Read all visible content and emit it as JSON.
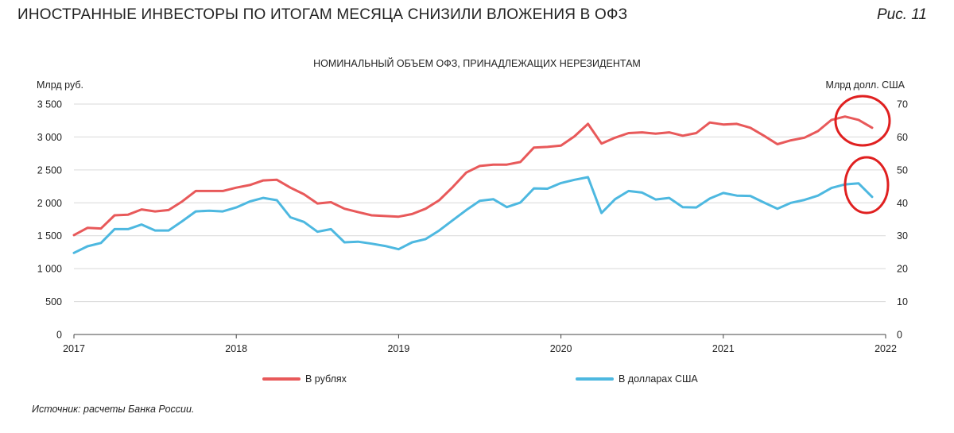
{
  "header": {
    "title": "ИНОСТРАННЫЕ ИНВЕСТОРЫ ПО ИТОГАМ МЕСЯЦА СНИЗИЛИ ВЛОЖЕНИЯ В ОФЗ",
    "figure_label": "Рис. 11"
  },
  "source": "Источник: расчеты Банка России.",
  "chart_data": {
    "type": "line",
    "title": "НОМИНАЛЬНЫЙ ОБЪЕМ ОФЗ, ПРИНАДЛЕЖАЩИХ НЕРЕЗИДЕНТАМ",
    "ylabel_left": "Млрд руб.",
    "ylabel_right": "Млрд долл. США",
    "ylim_left": [
      0,
      3500
    ],
    "ylim_right": [
      0,
      70
    ],
    "xlim": [
      2017,
      2022
    ],
    "x_ticks": [
      "2017",
      "2018",
      "2019",
      "2020",
      "2021",
      "2022"
    ],
    "y_ticks_left": [
      "0",
      "500",
      "1 000",
      "1 500",
      "2 000",
      "2 500",
      "3 000",
      "3 500"
    ],
    "y_ticks_right": [
      "0",
      "10",
      "20",
      "30",
      "40",
      "50",
      "60",
      "70"
    ],
    "grid": "horizontal",
    "legend_position": "bottom",
    "x_months": [
      "2017-01",
      "2017-02",
      "2017-03",
      "2017-04",
      "2017-05",
      "2017-06",
      "2017-07",
      "2017-08",
      "2017-09",
      "2017-10",
      "2017-11",
      "2017-12",
      "2018-01",
      "2018-02",
      "2018-03",
      "2018-04",
      "2018-05",
      "2018-06",
      "2018-07",
      "2018-08",
      "2018-09",
      "2018-10",
      "2018-11",
      "2018-12",
      "2019-01",
      "2019-02",
      "2019-03",
      "2019-04",
      "2019-05",
      "2019-06",
      "2019-07",
      "2019-08",
      "2019-09",
      "2019-10",
      "2019-11",
      "2019-12",
      "2020-01",
      "2020-02",
      "2020-03",
      "2020-04",
      "2020-05",
      "2020-06",
      "2020-07",
      "2020-08",
      "2020-09",
      "2020-10",
      "2020-11",
      "2020-12",
      "2021-01",
      "2021-02",
      "2021-03",
      "2021-04",
      "2021-05",
      "2021-06",
      "2021-07",
      "2021-08",
      "2021-09",
      "2021-10",
      "2021-11",
      "2021-12"
    ],
    "series": [
      {
        "name": "В рублях",
        "axis": "left",
        "color": "#e8595a",
        "values": [
          1510,
          1620,
          1610,
          1810,
          1820,
          1900,
          1870,
          1890,
          2020,
          2180,
          2180,
          2180,
          2230,
          2270,
          2340,
          2350,
          2230,
          2130,
          1990,
          2010,
          1910,
          1860,
          1810,
          1800,
          1790,
          1830,
          1910,
          2040,
          2240,
          2460,
          2560,
          2580,
          2580,
          2620,
          2840,
          2850,
          2870,
          3010,
          3200,
          2900,
          2990,
          3060,
          3070,
          3050,
          3070,
          3020,
          3060,
          3220,
          3190,
          3200,
          3140,
          3020,
          2890,
          2950,
          2990,
          3090,
          3260,
          3310,
          3260,
          3140
        ]
      },
      {
        "name": "В долларах США",
        "axis": "right",
        "color": "#4db8e0",
        "values": [
          24.8,
          26.8,
          27.8,
          32.0,
          32.0,
          33.4,
          31.6,
          31.6,
          34.4,
          37.4,
          37.6,
          37.4,
          38.6,
          40.4,
          41.5,
          40.8,
          35.6,
          34.2,
          31.2,
          32.0,
          28.0,
          28.2,
          27.6,
          26.9,
          25.9,
          28.0,
          29.0,
          31.6,
          34.7,
          37.8,
          40.6,
          41.1,
          38.7,
          40.1,
          44.4,
          44.3,
          46.0,
          47.0,
          47.8,
          36.9,
          41.1,
          43.6,
          43.1,
          41.0,
          41.5,
          38.7,
          38.6,
          41.3,
          43.0,
          42.2,
          42.1,
          40.1,
          38.2,
          40.0,
          40.9,
          42.2,
          44.5,
          45.6,
          45.9,
          41.8
        ]
      }
    ]
  }
}
